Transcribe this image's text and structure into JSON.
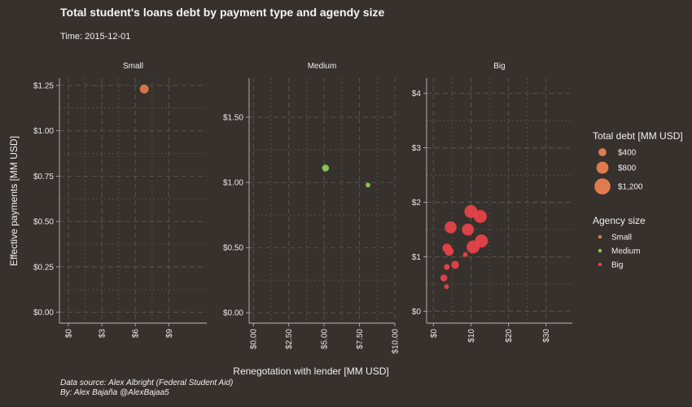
{
  "title": "Total student's loans debt by payment type and agendy size",
  "subtitle": "Time: 2015-12-01",
  "caption": {
    "line1": "Data source: Alex Albright (Federal Student Aid)",
    "line2": "By: Alex Bajaña @AlexBajaa5"
  },
  "colors": {
    "background": "#36312d",
    "Small": "#e07a4f",
    "Medium": "#8fce52",
    "Big": "#e8434a",
    "grid": "#5c5650"
  },
  "chart_data": {
    "type": "scatter",
    "xlabel": "Renegotation with lender [MM USD]",
    "ylabel": "Effective payments [MM USD]",
    "facets": [
      {
        "name": "Small",
        "color_key": "Small",
        "xlim": [
          -0.8,
          12.4
        ],
        "ylim": [
          -0.06,
          1.29
        ],
        "xticks": [
          0,
          3,
          6,
          9
        ],
        "xtick_labels": [
          "$0",
          "$3",
          "$6",
          "$9"
        ],
        "yticks": [
          0,
          0.25,
          0.5,
          0.75,
          1.0,
          1.25
        ],
        "ytick_labels": [
          "$0.00",
          "$0.25",
          "$0.50",
          "$0.75",
          "$1.00",
          "$1.25"
        ],
        "points": [
          {
            "x": 6.8,
            "y": 1.23,
            "debt": 500
          }
        ]
      },
      {
        "name": "Medium",
        "color_key": "Medium",
        "xlim": [
          -0.3,
          10.0
        ],
        "ylim": [
          -0.08,
          1.8
        ],
        "xticks": [
          0,
          2.5,
          5,
          7.5,
          10
        ],
        "xtick_labels": [
          "$0.00",
          "$2.50",
          "$5.00",
          "$7.50",
          "$10.00"
        ],
        "yticks": [
          0,
          0.5,
          1.0,
          1.5
        ],
        "ytick_labels": [
          "$0.00",
          "$0.50",
          "$1.00",
          "$1.50"
        ],
        "points": [
          {
            "x": 5.1,
            "y": 1.11,
            "debt": 300
          },
          {
            "x": 8.1,
            "y": 0.98,
            "debt": 80
          }
        ]
      },
      {
        "name": "Big",
        "color_key": "Big",
        "xlim": [
          -1.8,
          37.0
        ],
        "ylim": [
          -0.22,
          4.28
        ],
        "xticks": [
          0,
          10,
          20,
          30
        ],
        "xtick_labels": [
          "$0",
          "$10",
          "$20",
          "$30"
        ],
        "yticks": [
          0,
          1,
          2,
          3,
          4
        ],
        "ytick_labels": [
          "$0",
          "$1",
          "$2",
          "$3",
          "$4"
        ],
        "points": [
          {
            "x": 10.0,
            "y": 1.83,
            "debt": 900
          },
          {
            "x": 12.5,
            "y": 1.74,
            "debt": 900
          },
          {
            "x": 4.6,
            "y": 1.54,
            "debt": 800
          },
          {
            "x": 9.2,
            "y": 1.5,
            "debt": 800
          },
          {
            "x": 12.8,
            "y": 1.29,
            "debt": 900
          },
          {
            "x": 10.6,
            "y": 1.18,
            "debt": 900
          },
          {
            "x": 3.6,
            "y": 1.16,
            "debt": 500
          },
          {
            "x": 4.2,
            "y": 1.1,
            "debt": 500
          },
          {
            "x": 8.5,
            "y": 1.04,
            "debt": 100
          },
          {
            "x": 5.8,
            "y": 0.85,
            "debt": 400
          },
          {
            "x": 3.6,
            "y": 0.81,
            "debt": 200
          },
          {
            "x": 2.8,
            "y": 0.61,
            "debt": 300
          },
          {
            "x": 3.5,
            "y": 0.45,
            "debt": 80
          }
        ]
      }
    ],
    "legend_size": {
      "title": "Total debt [MM USD]",
      "entries": [
        {
          "label": "$400",
          "debt": 400
        },
        {
          "label": "$800",
          "debt": 800
        },
        {
          "label": "$1,200",
          "debt": 1200
        }
      ]
    },
    "legend_color": {
      "title": "Agency size",
      "entries": [
        {
          "label": "Small",
          "color_key": "Small"
        },
        {
          "label": "Medium",
          "color_key": "Medium"
        },
        {
          "label": "Big",
          "color_key": "Big"
        }
      ]
    },
    "legend_placement": "right",
    "grid": true
  }
}
